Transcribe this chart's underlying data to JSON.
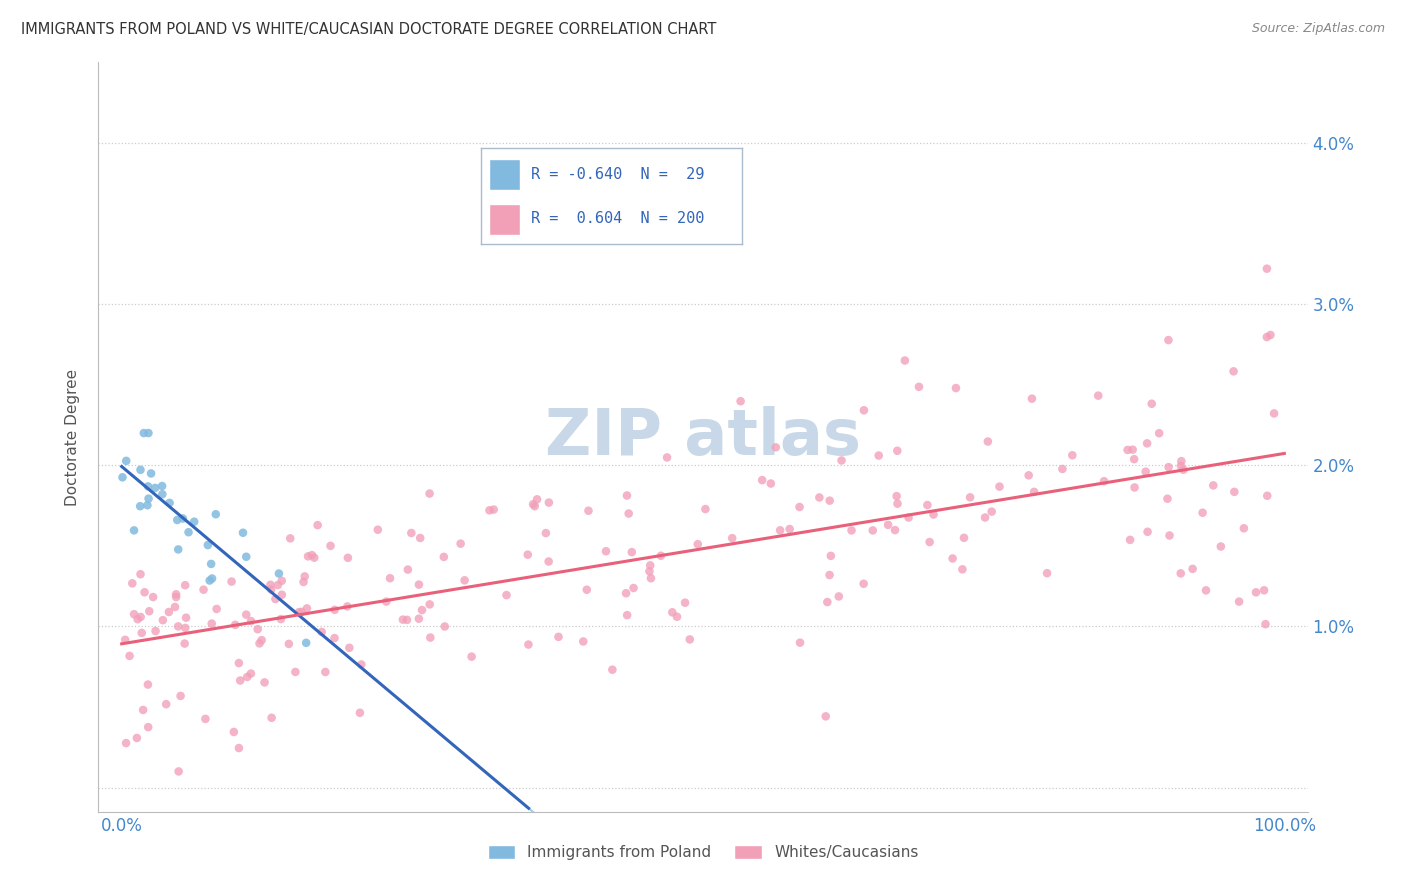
{
  "title": "IMMIGRANTS FROM POLAND VS WHITE/CAUCASIAN DOCTORATE DEGREE CORRELATION CHART",
  "source": "Source: ZipAtlas.com",
  "ylabel": "Doctorate Degree",
  "color_poland": "#82BADF",
  "color_white": "#F2A0B8",
  "color_poland_line": "#3366BB",
  "color_white_line": "#E8607A",
  "color_poland_dash": "#AACCDD",
  "watermark_color": "#C8D8E8",
  "grid_color": "#CCCCCC",
  "tick_color": "#4488CC",
  "title_color": "#333333",
  "source_color": "#888888",
  "ylabel_color": "#555555",
  "legend_border_color": "#AABBCC",
  "legend_text_color": "#3366BB",
  "xlim": [
    -2,
    102
  ],
  "ylim": [
    -0.15,
    4.5
  ],
  "ytick_positions": [
    0,
    1,
    2,
    3,
    4
  ],
  "ytick_labels_right": [
    "",
    "1.0%",
    "2.0%",
    "3.0%",
    "4.0%"
  ],
  "xtick_positions": [
    0,
    100
  ],
  "xtick_labels": [
    "0.0%",
    "100.0%"
  ],
  "legend_r1_text": "R = -0.640  N =  29",
  "legend_r2_text": "R =  0.604  N = 200",
  "seed": 1234
}
